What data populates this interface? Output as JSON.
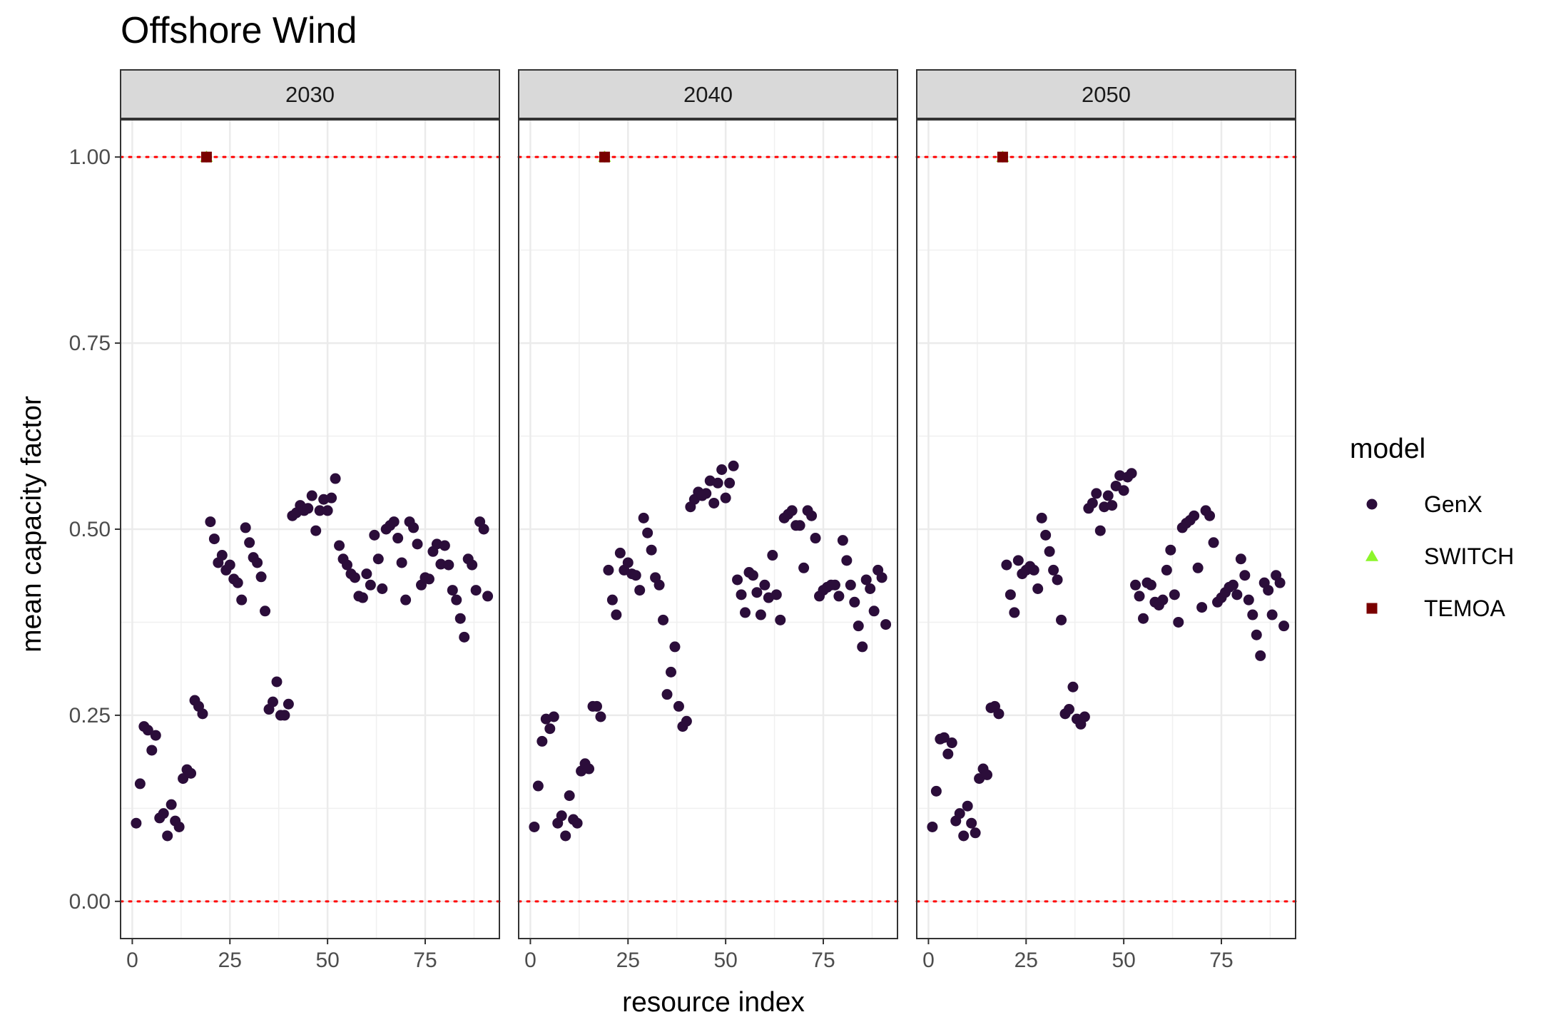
{
  "chart_data": {
    "type": "scatter",
    "title": "Offshore Wind",
    "xlabel": "resource index",
    "ylabel": "mean capacity factor",
    "xlim": [
      -3,
      94
    ],
    "ylim": [
      -0.05,
      1.05
    ],
    "x_ticks": [
      0,
      25,
      50,
      75
    ],
    "x_tick_labels": [
      "0",
      "25",
      "50",
      "75"
    ],
    "y_ticks": [
      0,
      0.25,
      0.5,
      0.75,
      1.0
    ],
    "y_tick_labels": [
      "0.00",
      "0.25",
      "0.50",
      "0.75",
      "1.00"
    ],
    "reference_lines": [
      0,
      1
    ],
    "reference_line_color": "#ff0000",
    "grid": true,
    "legend": {
      "title": "model",
      "position": "right",
      "entries": [
        {
          "name": "GenX",
          "shape": "circle",
          "color": "#2b0d3a"
        },
        {
          "name": "SWITCH",
          "shape": "triangle",
          "color": "#8cf52a"
        },
        {
          "name": "TEMOA",
          "shape": "square",
          "color": "#7a0000"
        }
      ]
    },
    "facets": [
      {
        "label": "2030",
        "series": [
          {
            "name": "GenX",
            "x": [
              1,
              2,
              3,
              4,
              5,
              6,
              7,
              8,
              9,
              10,
              11,
              12,
              13,
              14,
              15,
              16,
              17,
              18,
              19,
              20,
              21,
              22,
              23,
              24,
              25,
              26,
              27,
              28,
              29,
              30,
              31,
              32,
              33,
              34,
              35,
              36,
              37,
              38,
              39,
              40,
              41,
              42,
              43,
              44,
              45,
              46,
              47,
              48,
              49,
              50,
              51,
              52,
              53,
              54,
              55,
              56,
              57,
              58,
              59,
              60,
              61,
              62,
              63,
              64,
              65,
              66,
              67,
              68,
              69,
              70,
              71,
              72,
              73,
              74,
              75,
              76,
              77,
              78,
              79,
              80,
              81,
              82,
              83,
              84,
              85,
              86,
              87,
              88,
              89,
              90,
              91
            ],
            "y": [
              0.105,
              0.158,
              0.235,
              0.23,
              0.203,
              0.223,
              0.112,
              0.118,
              0.088,
              0.13,
              0.108,
              0.1,
              0.165,
              0.177,
              0.172,
              0.27,
              0.262,
              0.252,
              1.0,
              0.51,
              0.487,
              0.455,
              0.465,
              0.445,
              0.452,
              0.433,
              0.428,
              0.405,
              0.502,
              0.482,
              0.462,
              0.455,
              0.436,
              0.39,
              0.258,
              0.268,
              0.295,
              0.25,
              0.25,
              0.265,
              0.518,
              0.522,
              0.532,
              0.525,
              0.528,
              0.545,
              0.498,
              0.525,
              0.54,
              0.525,
              0.542,
              0.568,
              0.478,
              0.46,
              0.452,
              0.44,
              0.435,
              0.41,
              0.408,
              0.44,
              0.425,
              0.492,
              0.46,
              0.42,
              0.5,
              0.505,
              0.51,
              0.488,
              0.455,
              0.405,
              0.51,
              0.502,
              0.48,
              0.425,
              0.435,
              0.433,
              0.47,
              0.48,
              0.453,
              0.478,
              0.452,
              0.418,
              0.405,
              0.38,
              0.355,
              0.46,
              0.452,
              0.418,
              0.51,
              0.5,
              0.41
            ]
          },
          {
            "name": "SWITCH",
            "x": [
              19
            ],
            "y": [
              1.0
            ]
          },
          {
            "name": "TEMOA",
            "x": [
              19
            ],
            "y": [
              1.0
            ]
          }
        ]
      },
      {
        "label": "2040",
        "series": [
          {
            "name": "GenX",
            "x": [
              1,
              2,
              3,
              4,
              5,
              6,
              7,
              8,
              9,
              10,
              11,
              12,
              13,
              14,
              15,
              16,
              17,
              18,
              19,
              20,
              21,
              22,
              23,
              24,
              25,
              26,
              27,
              28,
              29,
              30,
              31,
              32,
              33,
              34,
              35,
              36,
              37,
              38,
              39,
              40,
              41,
              42,
              43,
              44,
              45,
              46,
              47,
              48,
              49,
              50,
              51,
              52,
              53,
              54,
              55,
              56,
              57,
              58,
              59,
              60,
              61,
              62,
              63,
              64,
              65,
              66,
              67,
              68,
              69,
              70,
              71,
              72,
              73,
              74,
              75,
              76,
              77,
              78,
              79,
              80,
              81,
              82,
              83,
              84,
              85,
              86,
              87,
              88,
              89,
              90,
              91
            ],
            "y": [
              0.1,
              0.155,
              0.215,
              0.245,
              0.232,
              0.248,
              0.105,
              0.115,
              0.088,
              0.142,
              0.11,
              0.105,
              0.175,
              0.185,
              0.178,
              0.262,
              0.262,
              0.248,
              1.0,
              0.445,
              0.405,
              0.385,
              0.468,
              0.445,
              0.455,
              0.44,
              0.438,
              0.418,
              0.515,
              0.495,
              0.472,
              0.435,
              0.425,
              0.378,
              0.278,
              0.308,
              0.342,
              0.262,
              0.235,
              0.242,
              0.53,
              0.54,
              0.55,
              0.545,
              0.548,
              0.565,
              0.535,
              0.562,
              0.58,
              0.542,
              0.562,
              0.585,
              0.432,
              0.412,
              0.388,
              0.442,
              0.438,
              0.415,
              0.385,
              0.425,
              0.408,
              0.465,
              0.412,
              0.378,
              0.515,
              0.52,
              0.525,
              0.505,
              0.505,
              0.448,
              0.525,
              0.518,
              0.488,
              0.41,
              0.418,
              0.422,
              0.425,
              0.425,
              0.41,
              0.485,
              0.458,
              0.425,
              0.402,
              0.37,
              0.342,
              0.432,
              0.42,
              0.39,
              0.445,
              0.435,
              0.372
            ]
          },
          {
            "name": "SWITCH",
            "x": [
              19
            ],
            "y": [
              1.0
            ]
          },
          {
            "name": "TEMOA",
            "x": [
              19
            ],
            "y": [
              1.0
            ]
          }
        ]
      },
      {
        "label": "2050",
        "series": [
          {
            "name": "GenX",
            "x": [
              1,
              2,
              3,
              4,
              5,
              6,
              7,
              8,
              9,
              10,
              11,
              12,
              13,
              14,
              15,
              16,
              17,
              18,
              19,
              20,
              21,
              22,
              23,
              24,
              25,
              26,
              27,
              28,
              29,
              30,
              31,
              32,
              33,
              34,
              35,
              36,
              37,
              38,
              39,
              40,
              41,
              42,
              43,
              44,
              45,
              46,
              47,
              48,
              49,
              50,
              51,
              52,
              53,
              54,
              55,
              56,
              57,
              58,
              59,
              60,
              61,
              62,
              63,
              64,
              65,
              66,
              67,
              68,
              69,
              70,
              71,
              72,
              73,
              74,
              75,
              76,
              77,
              78,
              79,
              80,
              81,
              82,
              83,
              84,
              85,
              86,
              87,
              88,
              89,
              90,
              91
            ],
            "y": [
              0.1,
              0.148,
              0.218,
              0.22,
              0.198,
              0.213,
              0.108,
              0.118,
              0.088,
              0.128,
              0.105,
              0.092,
              0.165,
              0.178,
              0.17,
              0.26,
              0.262,
              0.252,
              1.0,
              0.452,
              0.412,
              0.388,
              0.458,
              0.44,
              0.445,
              0.45,
              0.445,
              0.42,
              0.515,
              0.492,
              0.47,
              0.445,
              0.432,
              0.378,
              0.252,
              0.258,
              0.288,
              0.245,
              0.238,
              0.248,
              0.528,
              0.535,
              0.548,
              0.498,
              0.53,
              0.545,
              0.532,
              0.558,
              0.572,
              0.552,
              0.57,
              0.575,
              0.425,
              0.41,
              0.38,
              0.428,
              0.425,
              0.402,
              0.398,
              0.405,
              0.445,
              0.472,
              0.412,
              0.375,
              0.502,
              0.508,
              0.512,
              0.518,
              0.448,
              0.395,
              0.525,
              0.518,
              0.482,
              0.402,
              0.408,
              0.415,
              0.422,
              0.425,
              0.412,
              0.46,
              0.438,
              0.405,
              0.385,
              0.358,
              0.33,
              0.428,
              0.418,
              0.385,
              0.438,
              0.428,
              0.37
            ]
          },
          {
            "name": "SWITCH",
            "x": [
              19
            ],
            "y": [
              1.0
            ]
          },
          {
            "name": "TEMOA",
            "x": [
              19
            ],
            "y": [
              1.0
            ]
          }
        ]
      }
    ]
  }
}
